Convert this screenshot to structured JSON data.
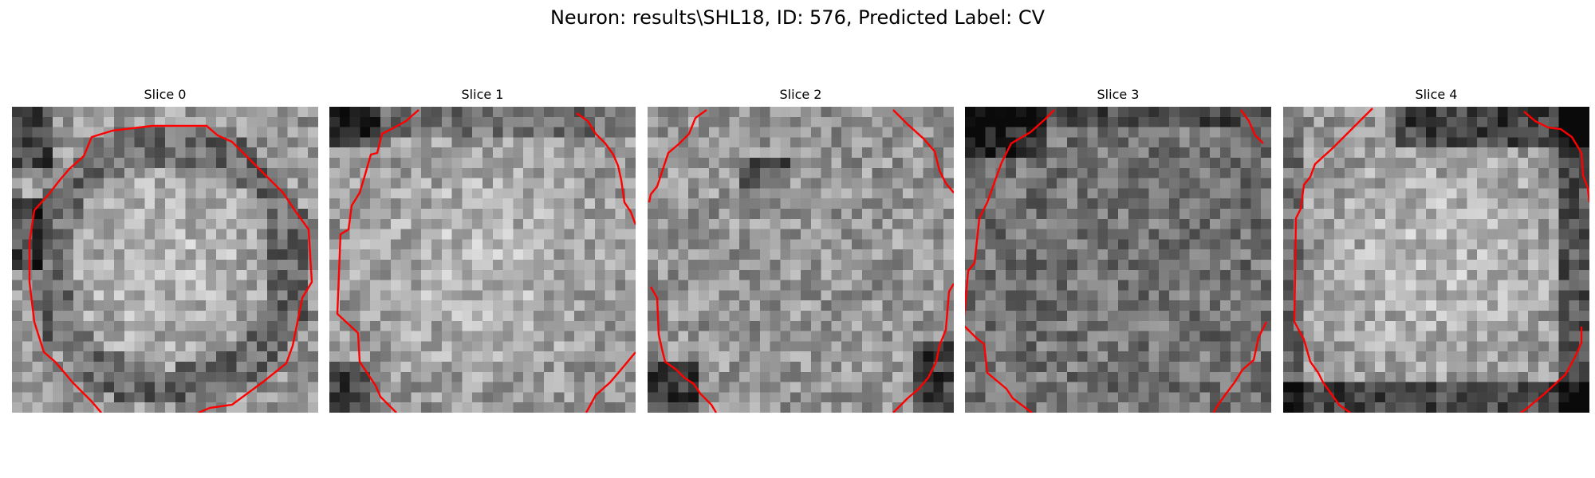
{
  "figure": {
    "title": "Neuron: results\\SHL18, ID: 576, Predicted Label: CV"
  },
  "colors": {
    "contour": "#ff0000",
    "background": "#ffffff",
    "colormap": "gray"
  },
  "slices": [
    {
      "label": "Slice 0",
      "texture": "round dark-ring cell",
      "dark_corners": [
        "top-left",
        "left"
      ],
      "bright_center": true
    },
    {
      "label": "Slice 1",
      "texture": "bright cell",
      "dark_corners": [
        "top-left",
        "bottom-left"
      ],
      "bright_center": true
    },
    {
      "label": "Slice 2",
      "texture": "noisy cell",
      "dark_corners": [
        "bottom-left",
        "bottom-right"
      ],
      "bright_center": false
    },
    {
      "label": "Slice 3",
      "texture": "noisy dark cell",
      "dark_corners": [
        "top-left",
        "top"
      ],
      "bright_center": false
    },
    {
      "label": "Slice 4",
      "texture": "bright cell with dark top",
      "dark_corners": [
        "top",
        "right",
        "bottom"
      ],
      "bright_center": true
    }
  ]
}
